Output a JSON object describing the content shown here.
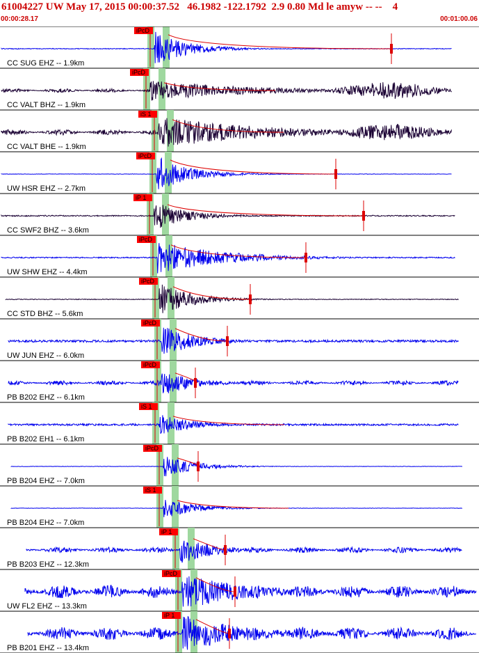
{
  "header": {
    "title": "61004227 UW May 17, 2015 00:00:37.52   46.1982 -122.1792  2.9 0.80 Md le amyw -- --    4",
    "time_start": "00:00:28.17",
    "time_end": "00:01:00.06"
  },
  "colors": {
    "header_text": "#cc0000",
    "trace_blue": "#0000ee",
    "trace_dark": "#1a0033",
    "pick_red": "#dd0000",
    "green_window": "#9fd89f",
    "separator": "#000000"
  },
  "traces": [
    {
      "label": "CC SUG EHZ -- 1.9km",
      "color": "blue",
      "phase": "iPcD",
      "amp": 1.0,
      "noise": 0.02,
      "coda": 1
    },
    {
      "label": "CC VALT BHZ -- 1.9km",
      "color": "dark",
      "phase": "iPcD",
      "amp": 0.55,
      "noise": 0.1,
      "coda": 3
    },
    {
      "label": "CC VALT BHE -- 1.9km",
      "color": "dark",
      "phase": "iS 1",
      "amp": 0.9,
      "noise": 0.15,
      "coda": 3
    },
    {
      "label": "UW HSR EHZ -- 2.7km",
      "color": "blue",
      "phase": "iPcD",
      "amp": 1.0,
      "noise": 0.01,
      "coda": 1
    },
    {
      "label": "CC SWF2 BHZ -- 3.6km",
      "color": "dark",
      "phase": "iP 1",
      "amp": 0.8,
      "noise": 0.03,
      "coda": 1
    },
    {
      "label": "UW SHW EHZ -- 4.4km",
      "color": "blue",
      "phase": "iPcD",
      "amp": 0.9,
      "noise": 0.03,
      "coda": 2
    },
    {
      "label": "CC STD BHZ -- 5.6km",
      "color": "dark",
      "phase": "iPcD",
      "amp": 0.9,
      "noise": 0.02,
      "coda": 1
    },
    {
      "label": "UW JUN EHZ -- 6.0km",
      "color": "blue",
      "phase": "iPcD",
      "amp": 0.9,
      "noise": 0.06,
      "coda": 1
    },
    {
      "label": "PB B202 EHZ -- 6.1km",
      "color": "blue",
      "phase": "iPcD",
      "amp": 0.7,
      "noise": 0.12,
      "coda": 1
    },
    {
      "label": "PB B202 EH1 -- 6.1km",
      "color": "blue",
      "phase": "iS 1",
      "amp": 0.6,
      "noise": 0.05,
      "coda": 1
    },
    {
      "label": "PB B204 EHZ -- 7.0km",
      "color": "blue",
      "phase": "iPcD",
      "amp": 0.6,
      "noise": 0.01,
      "coda": 1
    },
    {
      "label": "PB B204 EH2 -- 7.0km",
      "color": "blue",
      "phase": "iS 1",
      "amp": 0.55,
      "noise": 0.01,
      "coda": 1
    },
    {
      "label": "PB B203 EHZ -- 12.3km",
      "color": "blue",
      "phase": "iP 1",
      "amp": 0.8,
      "noise": 0.15,
      "coda": 1
    },
    {
      "label": "UW FL2 EHZ -- 13.3km",
      "color": "blue",
      "phase": "iPcD",
      "amp": 1.0,
      "noise": 0.35,
      "coda": 2
    },
    {
      "label": "PB B201 EHZ -- 13.4km",
      "color": "blue",
      "phase": "iP 1",
      "amp": 1.0,
      "noise": 0.35,
      "coda": 2
    }
  ]
}
